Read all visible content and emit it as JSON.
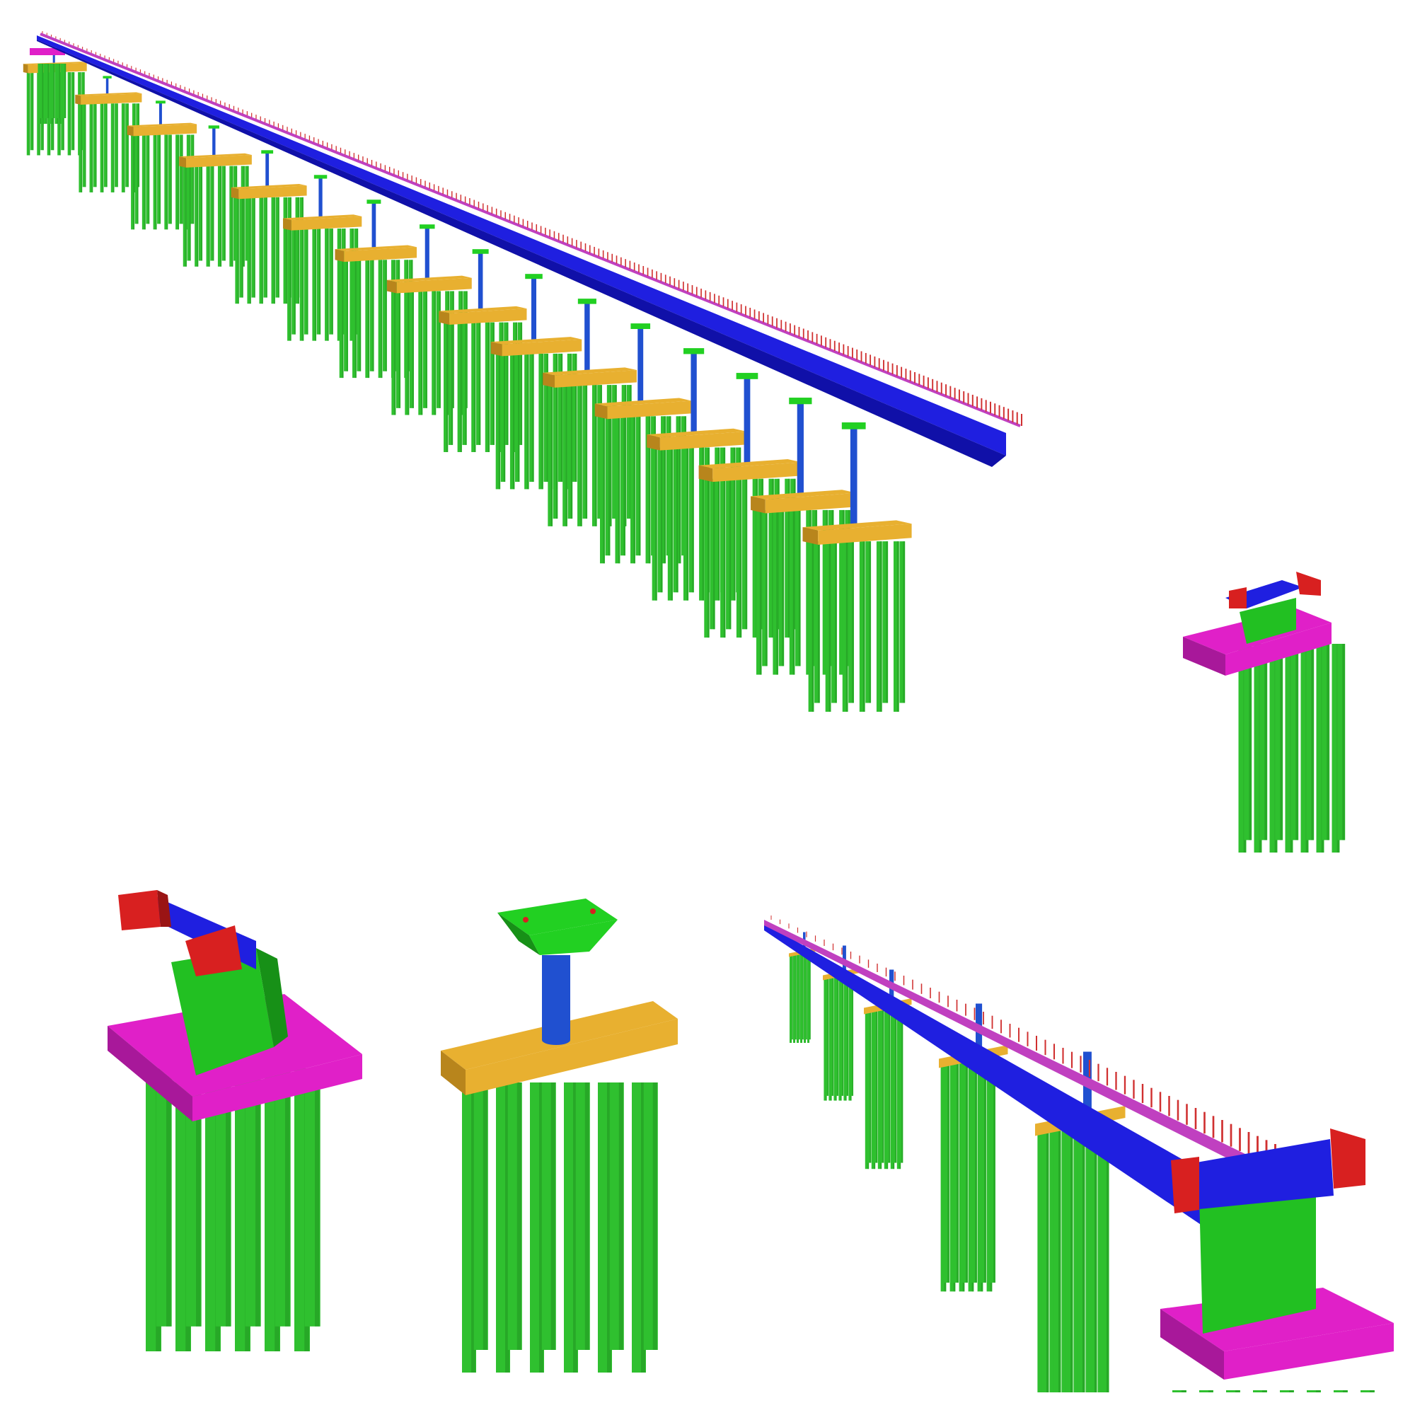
{
  "colors": {
    "deck": "#1f1fe0",
    "deck_dark": "#1010a8",
    "deck_edge": "#c040c0",
    "railing_post": "#d03030",
    "pile": "#2fc02f",
    "pile_dark": "#1f8f1f",
    "pile_cap": "#e8b030",
    "pile_cap_dark": "#b8851c",
    "abutment_cap": "#e020c8",
    "abutment_cap_dark": "#a8189a",
    "abutment_wall": "#22c022",
    "abutment_wall_dark": "#179017",
    "wing_wall": "#d82020",
    "wing_wall_dark": "#9a1414",
    "column": "#2050d0",
    "pier_cap": "#22d022",
    "background": "#ffffff"
  },
  "panels": [
    {
      "name": "full-bridge-view",
      "icon": "bridge-overview-icon"
    },
    {
      "name": "abutment-detail",
      "icon": "abutment-icon"
    },
    {
      "name": "pier-detail",
      "icon": "pier-icon"
    },
    {
      "name": "bridge-end-closeup",
      "icon": "bridge-closeup-icon"
    }
  ]
}
